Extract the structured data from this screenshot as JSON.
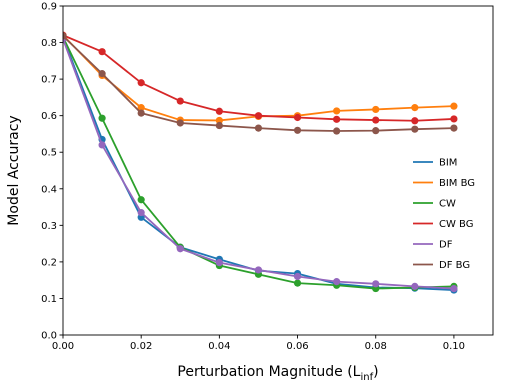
{
  "chart_data": {
    "type": "line",
    "xlabel_main": "Perturbation Magnitude (L",
    "xlabel_sub": "inf",
    "xlabel_close": ")",
    "ylabel": "Model Accuracy",
    "xlim": [
      0.0,
      0.11
    ],
    "ylim": [
      0.0,
      0.9
    ],
    "xticks": [
      "0.00",
      "0.02",
      "0.04",
      "0.06",
      "0.08",
      "0.10"
    ],
    "xtick_values": [
      0.0,
      0.02,
      0.04,
      0.06,
      0.08,
      0.1
    ],
    "yticks": [
      "0.0",
      "0.1",
      "0.2",
      "0.3",
      "0.4",
      "0.5",
      "0.6",
      "0.7",
      "0.8",
      "0.9"
    ],
    "ytick_values": [
      0.0,
      0.1,
      0.2,
      0.3,
      0.4,
      0.5,
      0.6,
      0.7,
      0.8,
      0.9
    ],
    "grid": false,
    "legend_position": "right",
    "x": [
      0.0,
      0.01,
      0.02,
      0.03,
      0.04,
      0.05,
      0.06,
      0.07,
      0.08,
      0.09,
      0.1
    ],
    "series": [
      {
        "name": "BIM",
        "color": "#1f77b4",
        "values": [
          0.815,
          0.535,
          0.322,
          0.24,
          0.207,
          0.176,
          0.168,
          0.14,
          0.13,
          0.128,
          0.123
        ]
      },
      {
        "name": "BIM BG",
        "color": "#ff7f0e",
        "values": [
          0.82,
          0.71,
          0.622,
          0.588,
          0.587,
          0.598,
          0.6,
          0.613,
          0.617,
          0.622,
          0.626
        ]
      },
      {
        "name": "CW",
        "color": "#2ca02c",
        "values": [
          0.815,
          0.593,
          0.37,
          0.24,
          0.19,
          0.166,
          0.142,
          0.136,
          0.127,
          0.13,
          0.133
        ]
      },
      {
        "name": "CW BG",
        "color": "#d62728",
        "values": [
          0.82,
          0.775,
          0.69,
          0.64,
          0.612,
          0.6,
          0.595,
          0.59,
          0.588,
          0.586,
          0.591
        ]
      },
      {
        "name": "DF",
        "color": "#9467bd",
        "values": [
          0.81,
          0.52,
          0.335,
          0.236,
          0.198,
          0.178,
          0.16,
          0.146,
          0.14,
          0.133,
          0.127
        ]
      },
      {
        "name": "DF BG",
        "color": "#8c564b",
        "values": [
          0.818,
          0.715,
          0.607,
          0.58,
          0.573,
          0.566,
          0.56,
          0.558,
          0.559,
          0.563,
          0.566
        ]
      }
    ]
  }
}
